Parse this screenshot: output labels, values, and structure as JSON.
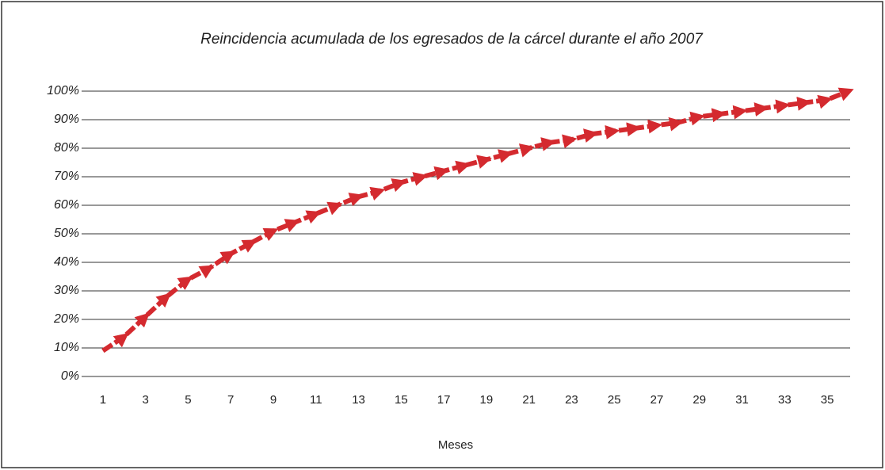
{
  "chart_data": {
    "type": "line",
    "title": "Reincidencia acumulada de los egresados de la cárcel durante el año 2007",
    "x_label": "Meses",
    "x": [
      1,
      2,
      3,
      4,
      5,
      6,
      7,
      8,
      9,
      10,
      11,
      12,
      13,
      14,
      15,
      16,
      17,
      18,
      19,
      20,
      21,
      22,
      23,
      24,
      25,
      26,
      27,
      28,
      29,
      30,
      31,
      32,
      33,
      34,
      35,
      36
    ],
    "series": [
      {
        "name": "Reincidencia acumulada",
        "color": "#d42a2f",
        "values": [
          9,
          14,
          21,
          28,
          34,
          38,
          43,
          47,
          51,
          54,
          57,
          60,
          63,
          65,
          68,
          70,
          72,
          74,
          76,
          78,
          80,
          82,
          83,
          85,
          86,
          87,
          88,
          89,
          91,
          92,
          93,
          94,
          95,
          96,
          97,
          100
        ]
      }
    ],
    "xlim": [
      0,
      36
    ],
    "xticks": [
      1,
      3,
      5,
      7,
      9,
      11,
      13,
      15,
      17,
      19,
      21,
      23,
      25,
      27,
      29,
      31,
      33,
      35
    ],
    "ylim": [
      0,
      100
    ],
    "yticks": [
      {
        "value": 0,
        "label": "0%"
      },
      {
        "value": 10,
        "label": "10%"
      },
      {
        "value": 20,
        "label": "20%"
      },
      {
        "value": 30,
        "label": "30%"
      },
      {
        "value": 40,
        "label": "40%"
      },
      {
        "value": 50,
        "label": "50%"
      },
      {
        "value": 60,
        "label": "60%"
      },
      {
        "value": 70,
        "label": "70%"
      },
      {
        "value": 80,
        "label": "80%"
      },
      {
        "value": 90,
        "label": "90%"
      },
      {
        "value": 100,
        "label": "100%"
      }
    ],
    "grid": true
  }
}
